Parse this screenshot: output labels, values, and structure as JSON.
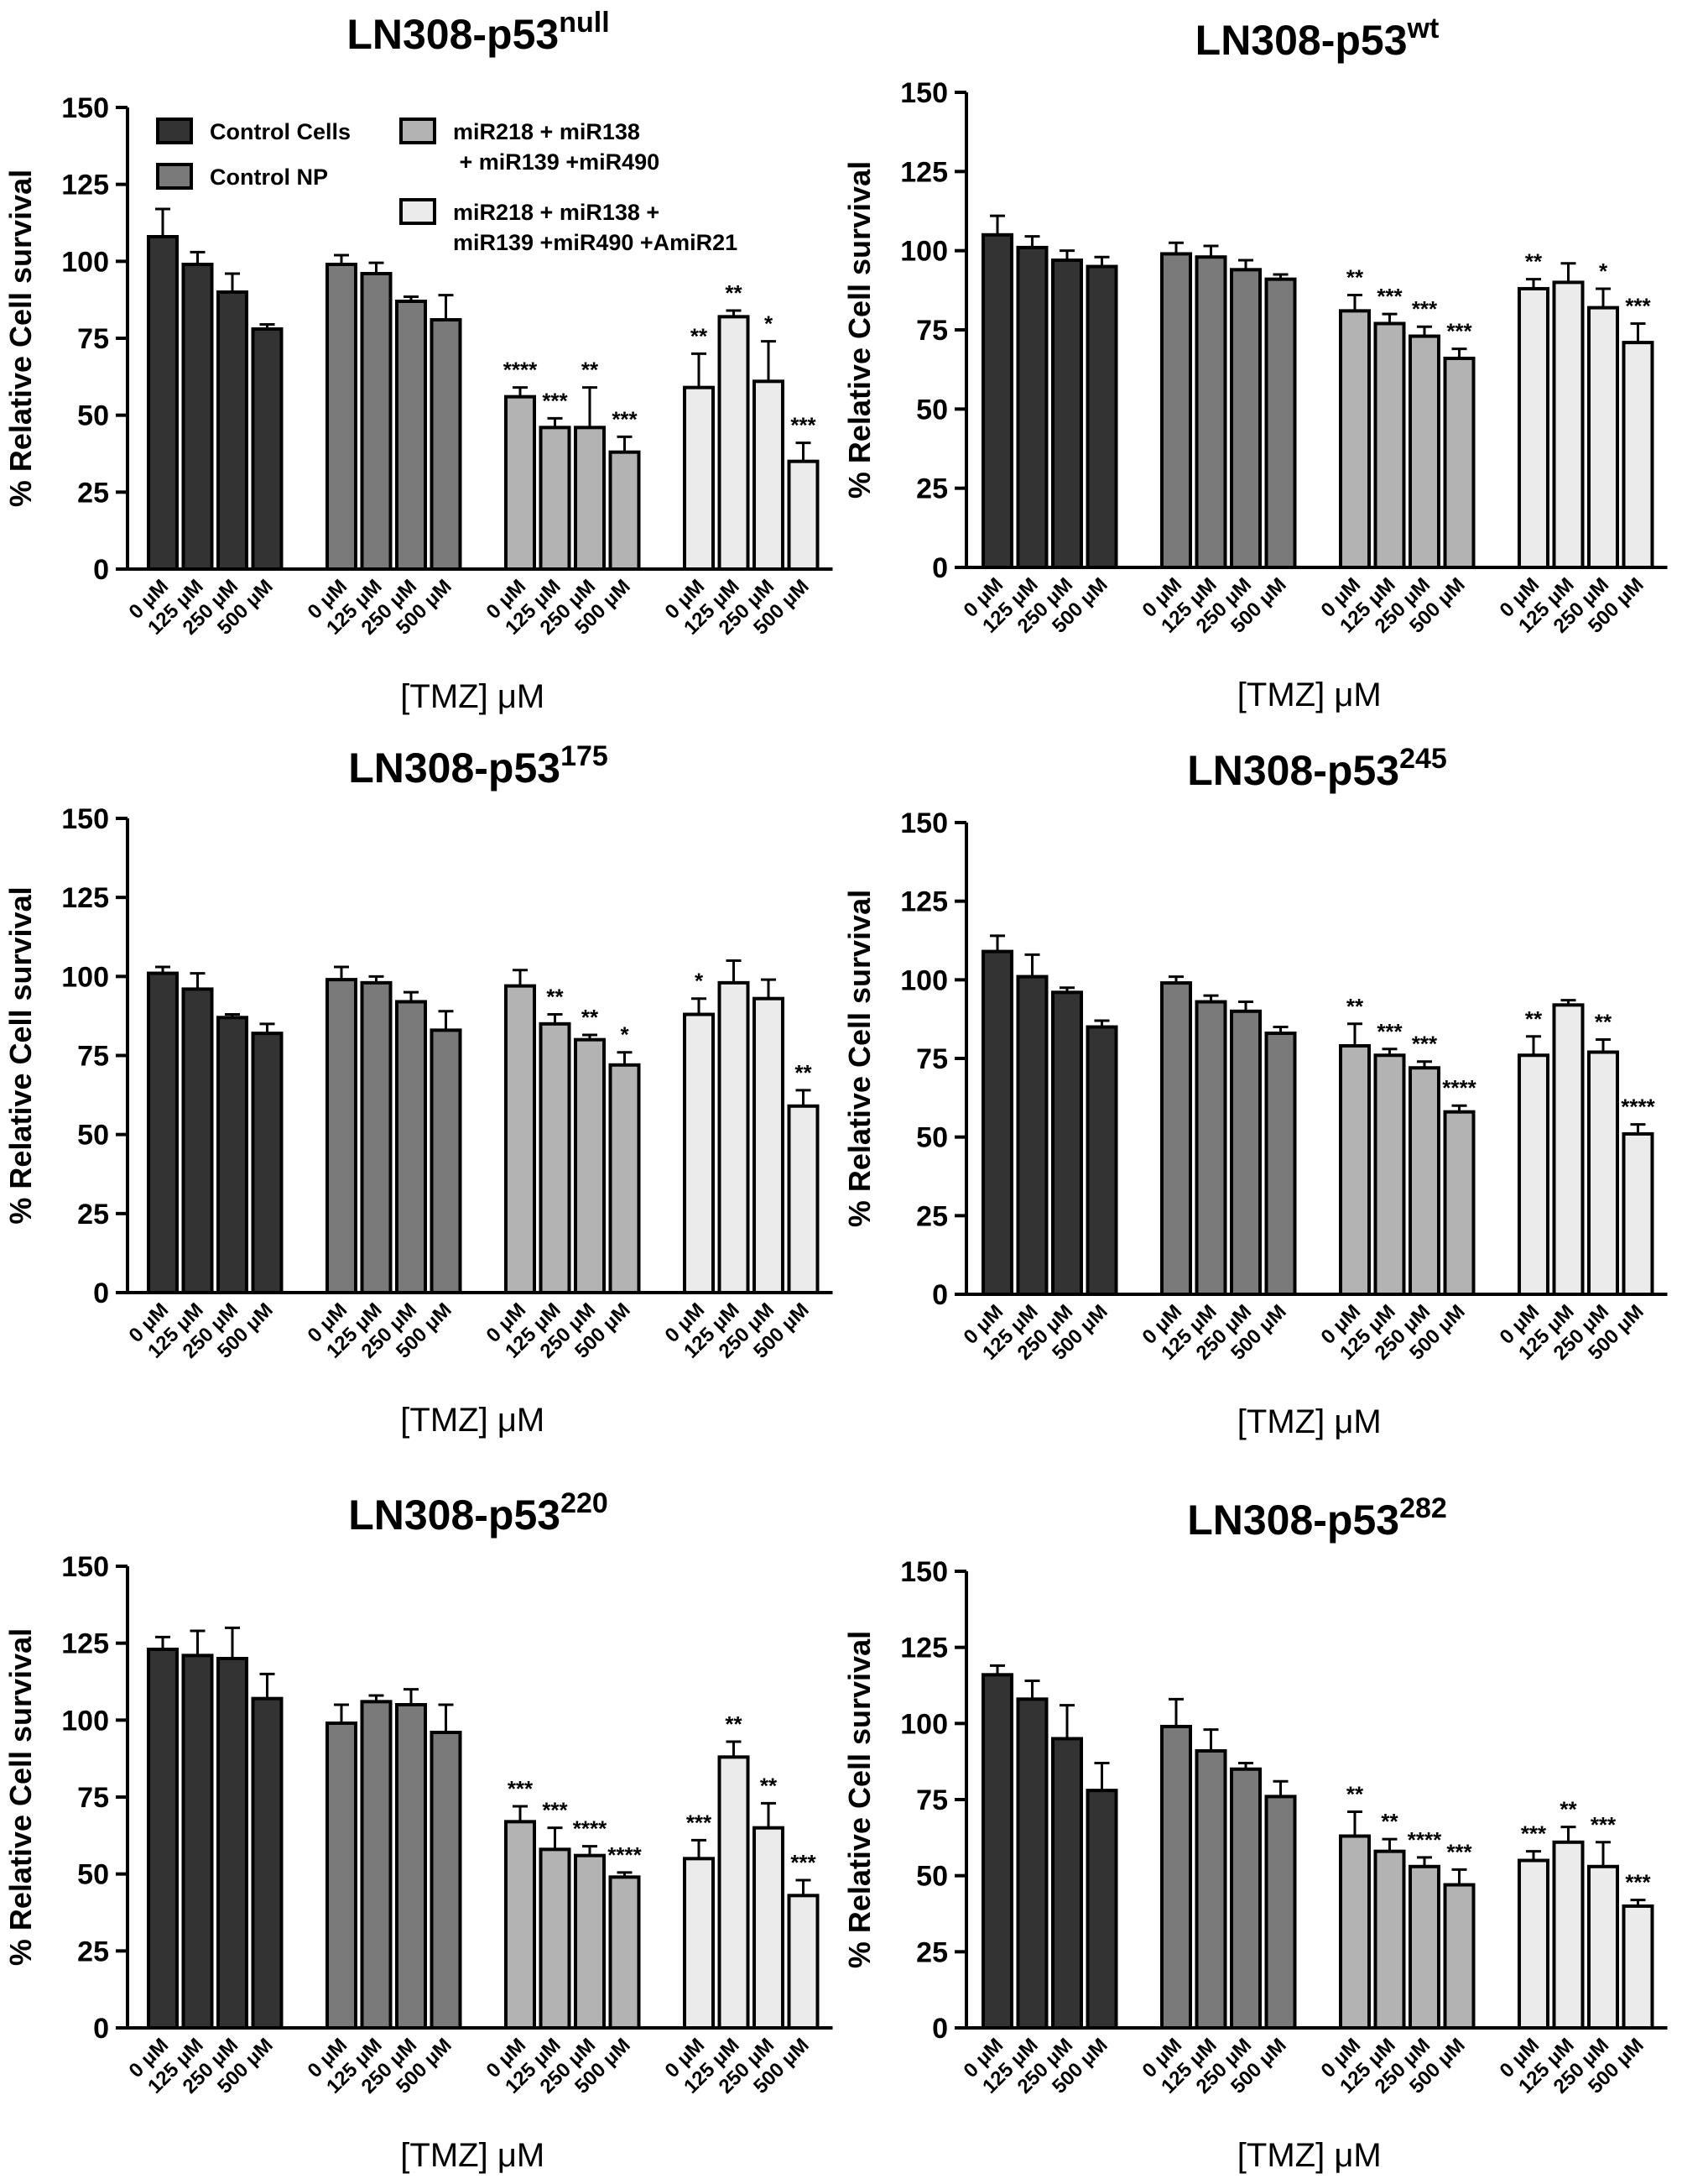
{
  "tmz_unit": "[TMZ] μM",
  "legend": {
    "items": [
      {
        "lines": [
          "Control Cells"
        ],
        "color": "#333333"
      },
      {
        "lines": [
          "Control NP"
        ],
        "color": "#7a7a7a"
      },
      {
        "lines": [
          "miR218 + miR138",
          " + miR139 +miR490"
        ],
        "color": "#b3b3b3"
      },
      {
        "lines": [
          "miR218 + miR138 +",
          "miR139 +miR490 +AmiR21"
        ],
        "color": "#ebebeb"
      }
    ]
  },
  "chart_data": [
    {
      "type": "bar",
      "title": "LN308-p53",
      "title_sup": "null",
      "ylabel": "% Relative Cell survival",
      "xlabel": "[TMZ] μM",
      "ylim": [
        0,
        150
      ],
      "yticks": [
        "0",
        "25",
        "50",
        "75",
        "100",
        "125",
        "150"
      ],
      "categories": [
        "0 μM",
        "125 μM",
        "250 μM",
        "500 μM"
      ],
      "series": [
        {
          "name": "Control Cells",
          "color": "#333333",
          "values": [
            108,
            99,
            90,
            78
          ],
          "errors": [
            9,
            4,
            6,
            1.5
          ],
          "sig": [
            "",
            "",
            "",
            ""
          ]
        },
        {
          "name": "Control NP",
          "color": "#7a7a7a",
          "values": [
            99,
            96,
            87,
            81
          ],
          "errors": [
            3,
            3.5,
            1.5,
            8
          ],
          "sig": [
            "",
            "",
            "",
            ""
          ]
        },
        {
          "name": "miR218 + miR138 + miR139 +miR490",
          "color": "#b3b3b3",
          "values": [
            56,
            46,
            46,
            38
          ],
          "errors": [
            3,
            3,
            13,
            5
          ],
          "sig": [
            "****",
            "***",
            "**",
            "***"
          ]
        },
        {
          "name": "miR218 + miR138 + miR139 +miR490 +AmiR21",
          "color": "#ebebeb",
          "values": [
            59,
            82,
            61,
            35
          ],
          "errors": [
            11,
            2,
            13,
            6
          ],
          "sig": [
            "**",
            "**",
            "*",
            "***"
          ]
        }
      ]
    },
    {
      "type": "bar",
      "title": "LN308-p53",
      "title_sup": "wt",
      "ylabel": "% Relative Cell survival",
      "xlabel": "[TMZ] μM",
      "ylim": [
        0,
        150
      ],
      "yticks": [
        "0",
        "25",
        "50",
        "75",
        "100",
        "125",
        "150"
      ],
      "categories": [
        "0 μM",
        "125 μM",
        "250 μM",
        "500 μM"
      ],
      "series": [
        {
          "name": "Control Cells",
          "color": "#333333",
          "values": [
            105,
            101,
            97,
            95
          ],
          "errors": [
            6,
            3.5,
            3,
            3
          ],
          "sig": [
            "",
            "",
            "",
            ""
          ]
        },
        {
          "name": "Control NP",
          "color": "#7a7a7a",
          "values": [
            99,
            98,
            94,
            91
          ],
          "errors": [
            3.5,
            3.5,
            3,
            1.5
          ],
          "sig": [
            "",
            "",
            "",
            ""
          ]
        },
        {
          "name": "miR218 + miR138 + miR139 +miR490",
          "color": "#b3b3b3",
          "values": [
            81,
            77,
            73,
            66
          ],
          "errors": [
            5,
            3,
            3,
            3
          ],
          "sig": [
            "**",
            "***",
            "***",
            "***"
          ]
        },
        {
          "name": "miR218 + miR138 + miR139 +miR490 +AmiR21",
          "color": "#ebebeb",
          "values": [
            88,
            90,
            82,
            71
          ],
          "errors": [
            3,
            6,
            6,
            6
          ],
          "sig": [
            "**",
            "",
            "*",
            "***"
          ]
        }
      ]
    },
    {
      "type": "bar",
      "title": "LN308-p53",
      "title_sup": "175",
      "ylabel": "% Relative Cell survival",
      "xlabel": "[TMZ] μM",
      "ylim": [
        0,
        150
      ],
      "yticks": [
        "0",
        "25",
        "50",
        "75",
        "100",
        "125",
        "150"
      ],
      "categories": [
        "0 μM",
        "125 μM",
        "250 μM",
        "500 μM"
      ],
      "series": [
        {
          "name": "Control Cells",
          "color": "#333333",
          "values": [
            101,
            96,
            87,
            82
          ],
          "errors": [
            2,
            5,
            1,
            3
          ],
          "sig": [
            "",
            "",
            "",
            ""
          ]
        },
        {
          "name": "Control NP",
          "color": "#7a7a7a",
          "values": [
            99,
            98,
            92,
            83
          ],
          "errors": [
            4,
            2,
            3,
            6
          ],
          "sig": [
            "",
            "",
            "",
            ""
          ]
        },
        {
          "name": "miR218 + miR138 + miR139 +miR490",
          "color": "#b3b3b3",
          "values": [
            97,
            85,
            80,
            72
          ],
          "errors": [
            5,
            3,
            1.5,
            4
          ],
          "sig": [
            "",
            "**",
            "**",
            "*"
          ]
        },
        {
          "name": "miR218 + miR138 + miR139 +miR490 +AmiR21",
          "color": "#ebebeb",
          "values": [
            88,
            98,
            93,
            59
          ],
          "errors": [
            5,
            7,
            6,
            5
          ],
          "sig": [
            "*",
            "",
            "",
            "**"
          ]
        }
      ]
    },
    {
      "type": "bar",
      "title": "LN308-p53",
      "title_sup": "245",
      "ylabel": "% Relative Cell survival",
      "xlabel": "[TMZ] μM",
      "ylim": [
        0,
        150
      ],
      "yticks": [
        "0",
        "25",
        "50",
        "75",
        "100",
        "125",
        "150"
      ],
      "categories": [
        "0 μM",
        "125 μM",
        "250 μM",
        "500 μM"
      ],
      "series": [
        {
          "name": "Control Cells",
          "color": "#333333",
          "values": [
            109,
            101,
            96,
            85
          ],
          "errors": [
            5,
            7,
            1.5,
            2
          ],
          "sig": [
            "",
            "",
            "",
            ""
          ]
        },
        {
          "name": "Control NP",
          "color": "#7a7a7a",
          "values": [
            99,
            93,
            90,
            83
          ],
          "errors": [
            2,
            2,
            3,
            2
          ],
          "sig": [
            "",
            "",
            "",
            ""
          ]
        },
        {
          "name": "miR218 + miR138 + miR139 +miR490",
          "color": "#b3b3b3",
          "values": [
            79,
            76,
            72,
            58
          ],
          "errors": [
            7,
            2,
            2,
            2
          ],
          "sig": [
            "**",
            "***",
            "***",
            "****"
          ]
        },
        {
          "name": "miR218 + miR138 + miR139 +miR490 +AmiR21",
          "color": "#ebebeb",
          "values": [
            76,
            92,
            77,
            51
          ],
          "errors": [
            6,
            1.5,
            4,
            3
          ],
          "sig": [
            "**",
            "",
            "**",
            "****"
          ]
        }
      ]
    },
    {
      "type": "bar",
      "title": "LN308-p53",
      "title_sup": "220",
      "ylabel": "% Relative Cell survival",
      "xlabel": "[TMZ] μM",
      "ylim": [
        0,
        150
      ],
      "yticks": [
        "0",
        "25",
        "50",
        "75",
        "100",
        "125",
        "150"
      ],
      "categories": [
        "0 μM",
        "125 μM",
        "250 μM",
        "500 μM"
      ],
      "series": [
        {
          "name": "Control Cells",
          "color": "#333333",
          "values": [
            123,
            121,
            120,
            107
          ],
          "errors": [
            4,
            8,
            10,
            8
          ],
          "sig": [
            "",
            "",
            "",
            ""
          ]
        },
        {
          "name": "Control NP",
          "color": "#7a7a7a",
          "values": [
            99,
            106,
            105,
            96
          ],
          "errors": [
            6,
            2,
            5,
            9
          ],
          "sig": [
            "",
            "",
            "",
            ""
          ]
        },
        {
          "name": "miR218 + miR138 + miR139 +miR490",
          "color": "#b3b3b3",
          "values": [
            67,
            58,
            56,
            49
          ],
          "errors": [
            5,
            7,
            3,
            1.5
          ],
          "sig": [
            "***",
            "***",
            "****",
            "****"
          ]
        },
        {
          "name": "miR218 + miR138 + miR139 +miR490 +AmiR21",
          "color": "#ebebeb",
          "values": [
            55,
            88,
            65,
            43
          ],
          "errors": [
            6,
            5,
            8,
            5
          ],
          "sig": [
            "***",
            "**",
            "**",
            "***"
          ]
        }
      ]
    },
    {
      "type": "bar",
      "title": "LN308-p53",
      "title_sup": "282",
      "ylabel": "% Relative Cell survival",
      "xlabel": "[TMZ] μM",
      "ylim": [
        0,
        150
      ],
      "yticks": [
        "0",
        "25",
        "50",
        "75",
        "100",
        "125",
        "150"
      ],
      "categories": [
        "0 μM",
        "125 μM",
        "250 μM",
        "500 μM"
      ],
      "series": [
        {
          "name": "Control Cells",
          "color": "#333333",
          "values": [
            116,
            108,
            95,
            78
          ],
          "errors": [
            3,
            6,
            11,
            9
          ],
          "sig": [
            "",
            "",
            "",
            ""
          ]
        },
        {
          "name": "Control NP",
          "color": "#7a7a7a",
          "values": [
            99,
            91,
            85,
            76
          ],
          "errors": [
            9,
            7,
            2,
            5
          ],
          "sig": [
            "",
            "",
            "",
            ""
          ]
        },
        {
          "name": "miR218 + miR138 + miR139 +miR490",
          "color": "#b3b3b3",
          "values": [
            63,
            58,
            53,
            47
          ],
          "errors": [
            8,
            4,
            3,
            5
          ],
          "sig": [
            "**",
            "**",
            "****",
            "***"
          ]
        },
        {
          "name": "miR218 + miR138 + miR139 +miR490 +AmiR21",
          "color": "#ebebeb",
          "values": [
            55,
            61,
            53,
            40
          ],
          "errors": [
            3,
            5,
            8,
            2
          ],
          "sig": [
            "***",
            "**",
            "***",
            "***"
          ]
        }
      ]
    }
  ]
}
